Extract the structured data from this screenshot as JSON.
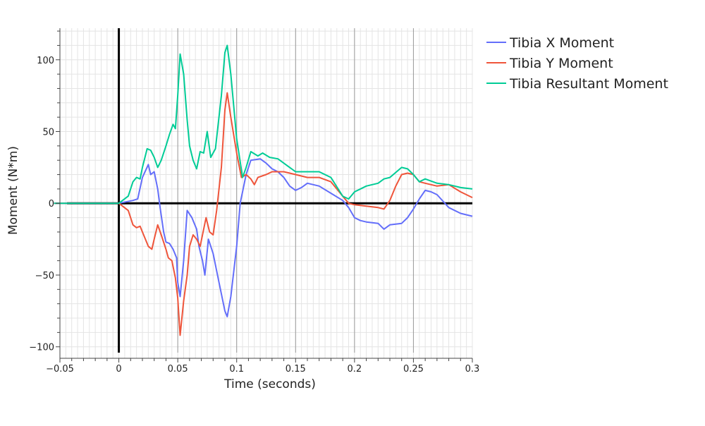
{
  "chart_data": {
    "type": "line",
    "title": "",
    "xlabel": "Time (seconds)",
    "ylabel": "Moment (N*m)",
    "xlim": [
      -0.05,
      0.3
    ],
    "ylim": [
      -108,
      122
    ],
    "grid": true,
    "legend_position": "top-right",
    "x_ticks": [
      -0.05,
      0,
      0.05,
      0.1,
      0.15,
      0.2,
      0.25,
      0.3
    ],
    "x_tick_labels": [
      "−0.05",
      "0",
      "0.05",
      "0.1",
      "0.15",
      "0.2",
      "0.25",
      "0.3"
    ],
    "y_ticks": [
      -100,
      -50,
      0,
      50,
      100
    ],
    "y_tick_labels": [
      "−100",
      "−50",
      "0",
      "50",
      "100"
    ],
    "colors": {
      "x_moment": "#636efa",
      "y_moment": "#ef553b",
      "resultant": "#00cc96",
      "zero_line": "#000000",
      "grid": "#e4e4e4",
      "vertical_guides": "#9a9a9a"
    },
    "series": [
      {
        "name": "Tibia X Moment",
        "color": "#636efa",
        "points": [
          [
            -0.055,
            0
          ],
          [
            0.0,
            0
          ],
          [
            0.012,
            2
          ],
          [
            0.016,
            3
          ],
          [
            0.02,
            18
          ],
          [
            0.025,
            27
          ],
          [
            0.027,
            20
          ],
          [
            0.03,
            22
          ],
          [
            0.033,
            10
          ],
          [
            0.035,
            -3
          ],
          [
            0.038,
            -20
          ],
          [
            0.04,
            -27
          ],
          [
            0.043,
            -28
          ],
          [
            0.046,
            -32
          ],
          [
            0.049,
            -38
          ],
          [
            0.05,
            -55
          ],
          [
            0.052,
            -65
          ],
          [
            0.055,
            -40
          ],
          [
            0.058,
            -5
          ],
          [
            0.062,
            -10
          ],
          [
            0.066,
            -18
          ],
          [
            0.068,
            -30
          ],
          [
            0.071,
            -40
          ],
          [
            0.073,
            -50
          ],
          [
            0.076,
            -25
          ],
          [
            0.08,
            -35
          ],
          [
            0.085,
            -55
          ],
          [
            0.09,
            -75
          ],
          [
            0.092,
            -79
          ],
          [
            0.095,
            -65
          ],
          [
            0.1,
            -30
          ],
          [
            0.103,
            0
          ],
          [
            0.108,
            20
          ],
          [
            0.112,
            30
          ],
          [
            0.12,
            31
          ],
          [
            0.125,
            28
          ],
          [
            0.13,
            24
          ],
          [
            0.135,
            22
          ],
          [
            0.14,
            18
          ],
          [
            0.145,
            12
          ],
          [
            0.15,
            9
          ],
          [
            0.155,
            11
          ],
          [
            0.16,
            14
          ],
          [
            0.17,
            12
          ],
          [
            0.18,
            7
          ],
          [
            0.19,
            2
          ],
          [
            0.195,
            -3
          ],
          [
            0.2,
            -10
          ],
          [
            0.205,
            -12
          ],
          [
            0.21,
            -13
          ],
          [
            0.22,
            -14
          ],
          [
            0.225,
            -18
          ],
          [
            0.23,
            -15
          ],
          [
            0.24,
            -14
          ],
          [
            0.245,
            -10
          ],
          [
            0.25,
            -4
          ],
          [
            0.255,
            3
          ],
          [
            0.26,
            9
          ],
          [
            0.265,
            8
          ],
          [
            0.27,
            6
          ],
          [
            0.28,
            -3
          ],
          [
            0.29,
            -7
          ],
          [
            0.3,
            -9
          ]
        ]
      },
      {
        "name": "Tibia Y Moment",
        "color": "#ef553b",
        "points": [
          [
            -0.055,
            0
          ],
          [
            0.0,
            0
          ],
          [
            0.008,
            -5
          ],
          [
            0.012,
            -15
          ],
          [
            0.015,
            -17
          ],
          [
            0.018,
            -16
          ],
          [
            0.02,
            -20
          ],
          [
            0.025,
            -30
          ],
          [
            0.028,
            -32
          ],
          [
            0.03,
            -25
          ],
          [
            0.033,
            -15
          ],
          [
            0.036,
            -22
          ],
          [
            0.04,
            -32
          ],
          [
            0.042,
            -38
          ],
          [
            0.045,
            -40
          ],
          [
            0.048,
            -52
          ],
          [
            0.05,
            -66
          ],
          [
            0.052,
            -92
          ],
          [
            0.055,
            -68
          ],
          [
            0.058,
            -50
          ],
          [
            0.06,
            -30
          ],
          [
            0.063,
            -22
          ],
          [
            0.066,
            -25
          ],
          [
            0.069,
            -30
          ],
          [
            0.072,
            -18
          ],
          [
            0.074,
            -10
          ],
          [
            0.077,
            -20
          ],
          [
            0.08,
            -22
          ],
          [
            0.083,
            -5
          ],
          [
            0.087,
            25
          ],
          [
            0.09,
            65
          ],
          [
            0.092,
            77
          ],
          [
            0.095,
            60
          ],
          [
            0.1,
            35
          ],
          [
            0.104,
            18
          ],
          [
            0.108,
            20
          ],
          [
            0.112,
            17
          ],
          [
            0.115,
            13
          ],
          [
            0.118,
            18
          ],
          [
            0.125,
            20
          ],
          [
            0.13,
            22
          ],
          [
            0.14,
            22
          ],
          [
            0.15,
            20
          ],
          [
            0.16,
            18
          ],
          [
            0.17,
            18
          ],
          [
            0.18,
            15
          ],
          [
            0.19,
            5
          ],
          [
            0.195,
            0
          ],
          [
            0.2,
            -1
          ],
          [
            0.21,
            -2
          ],
          [
            0.22,
            -3
          ],
          [
            0.225,
            -4
          ],
          [
            0.23,
            2
          ],
          [
            0.235,
            12
          ],
          [
            0.24,
            20
          ],
          [
            0.245,
            21
          ],
          [
            0.25,
            20
          ],
          [
            0.255,
            15
          ],
          [
            0.26,
            14
          ],
          [
            0.27,
            12
          ],
          [
            0.28,
            13
          ],
          [
            0.29,
            8
          ],
          [
            0.3,
            4
          ]
        ]
      },
      {
        "name": "Tibia Resultant Moment",
        "color": "#00cc96",
        "points": [
          [
            -0.055,
            0
          ],
          [
            0.0,
            0
          ],
          [
            0.008,
            5
          ],
          [
            0.012,
            15
          ],
          [
            0.015,
            18
          ],
          [
            0.018,
            17
          ],
          [
            0.02,
            25
          ],
          [
            0.024,
            38
          ],
          [
            0.027,
            37
          ],
          [
            0.03,
            32
          ],
          [
            0.033,
            25
          ],
          [
            0.036,
            30
          ],
          [
            0.04,
            40
          ],
          [
            0.043,
            48
          ],
          [
            0.046,
            55
          ],
          [
            0.048,
            52
          ],
          [
            0.05,
            75
          ],
          [
            0.052,
            104
          ],
          [
            0.055,
            90
          ],
          [
            0.058,
            58
          ],
          [
            0.06,
            40
          ],
          [
            0.063,
            30
          ],
          [
            0.066,
            24
          ],
          [
            0.069,
            36
          ],
          [
            0.072,
            35
          ],
          [
            0.075,
            50
          ],
          [
            0.078,
            32
          ],
          [
            0.082,
            38
          ],
          [
            0.087,
            75
          ],
          [
            0.09,
            105
          ],
          [
            0.092,
            110
          ],
          [
            0.095,
            90
          ],
          [
            0.1,
            45
          ],
          [
            0.105,
            18
          ],
          [
            0.108,
            25
          ],
          [
            0.112,
            36
          ],
          [
            0.118,
            33
          ],
          [
            0.122,
            35
          ],
          [
            0.128,
            32
          ],
          [
            0.135,
            31
          ],
          [
            0.145,
            25
          ],
          [
            0.15,
            22
          ],
          [
            0.16,
            22
          ],
          [
            0.17,
            22
          ],
          [
            0.18,
            18
          ],
          [
            0.19,
            5
          ],
          [
            0.195,
            3
          ],
          [
            0.2,
            8
          ],
          [
            0.21,
            12
          ],
          [
            0.22,
            14
          ],
          [
            0.225,
            17
          ],
          [
            0.23,
            18
          ],
          [
            0.24,
            25
          ],
          [
            0.245,
            24
          ],
          [
            0.25,
            20
          ],
          [
            0.255,
            15
          ],
          [
            0.26,
            17
          ],
          [
            0.27,
            14
          ],
          [
            0.28,
            13
          ],
          [
            0.29,
            11
          ],
          [
            0.3,
            10
          ]
        ]
      }
    ]
  }
}
